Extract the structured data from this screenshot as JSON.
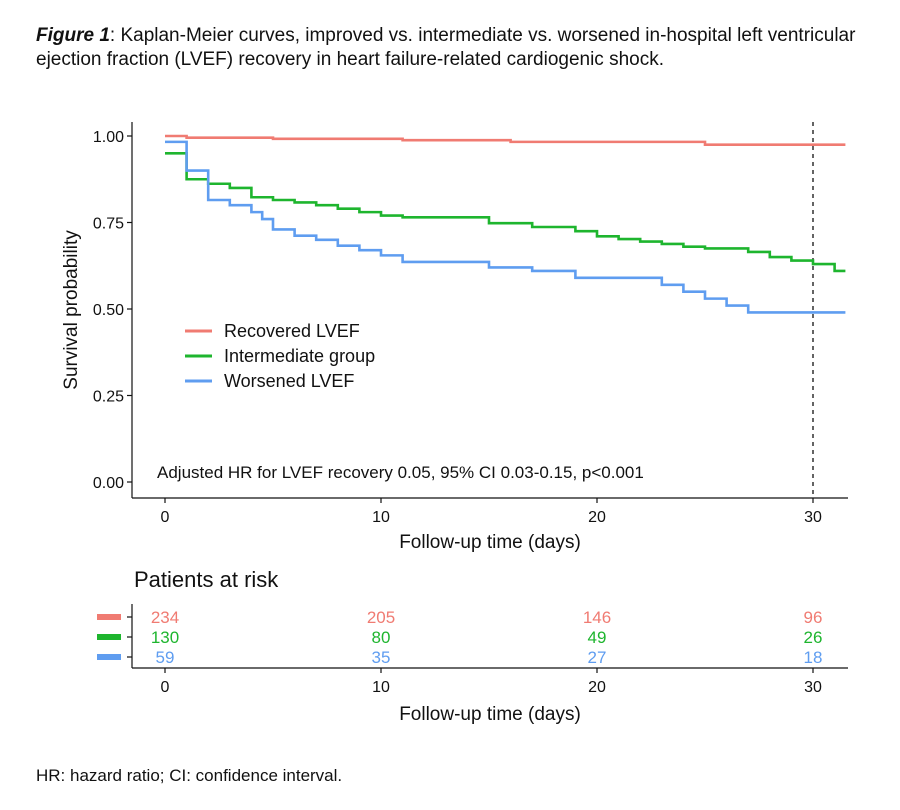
{
  "caption": {
    "figure_label": "Figure 1",
    "text": ": Kaplan-Meier curves, improved vs. intermediate vs. worsened in-hospital left ventricular ejection fraction (LVEF) recovery in heart failure-related cardiogenic shock."
  },
  "footnote": "HR: hazard ratio; CI: confidence interval.",
  "chart_data": {
    "type": "line",
    "subtype": "kaplan-meier-step",
    "xlabel": "Follow-up time (days)",
    "ylabel": "Survival probability",
    "xlim": [
      -1.5,
      31.5
    ],
    "ylim": [
      0,
      1
    ],
    "x_ticks": [
      0,
      10,
      20,
      30
    ],
    "x_tick_labels": [
      "0",
      "10",
      "20",
      "30"
    ],
    "y_ticks": [
      0,
      0.25,
      0.5,
      0.75,
      1.0
    ],
    "y_tick_labels": [
      "0.00",
      "0.25",
      "0.50",
      "0.75",
      "1.00"
    ],
    "grid": false,
    "legend_position": "middle-left",
    "reference_line_x": 30,
    "annotation": "Adjusted HR for LVEF recovery 0.05, 95% CI 0.03-0.15, p<0.001",
    "series": [
      {
        "name": "Recovered LVEF",
        "color": "#f07b72",
        "x": [
          0,
          1,
          5,
          11,
          16,
          25,
          31.5
        ],
        "y": [
          1.0,
          0.995,
          0.992,
          0.988,
          0.983,
          0.975,
          0.975
        ]
      },
      {
        "name": "Intermediate group",
        "color": "#1eb52e",
        "x": [
          0,
          1,
          2,
          3,
          4,
          5,
          6,
          7,
          8,
          9,
          10,
          11,
          15,
          17,
          19,
          20,
          21,
          22,
          23,
          24,
          25,
          27,
          28,
          29,
          30,
          31,
          31.5
        ],
        "y": [
          0.95,
          0.875,
          0.862,
          0.85,
          0.823,
          0.815,
          0.808,
          0.8,
          0.79,
          0.78,
          0.77,
          0.765,
          0.748,
          0.737,
          0.725,
          0.71,
          0.702,
          0.695,
          0.688,
          0.68,
          0.675,
          0.665,
          0.65,
          0.64,
          0.63,
          0.61,
          0.61
        ]
      },
      {
        "name": "Worsened LVEF",
        "color": "#5f9df0",
        "x": [
          0,
          1,
          2,
          3,
          4,
          4.5,
          5,
          6,
          7,
          8,
          9,
          10,
          11,
          15,
          17,
          19,
          23,
          24,
          25,
          26,
          27,
          31.5
        ],
        "y": [
          0.983,
          0.9,
          0.815,
          0.8,
          0.78,
          0.76,
          0.73,
          0.712,
          0.7,
          0.683,
          0.67,
          0.655,
          0.636,
          0.62,
          0.61,
          0.59,
          0.57,
          0.55,
          0.53,
          0.51,
          0.49,
          0.49
        ]
      }
    ],
    "risk_table": {
      "title": "Patients at risk",
      "xlabel": "Follow-up time (days)",
      "x_ticks": [
        0,
        10,
        20,
        30
      ],
      "x_tick_labels": [
        "0",
        "10",
        "20",
        "30"
      ],
      "rows": [
        {
          "color": "#f07b72",
          "values": [
            "234",
            "205",
            "146",
            "96"
          ]
        },
        {
          "color": "#1eb52e",
          "values": [
            "130",
            "80",
            "49",
            "26"
          ]
        },
        {
          "color": "#5f9df0",
          "values": [
            "59",
            "35",
            "27",
            "18"
          ]
        }
      ]
    }
  }
}
